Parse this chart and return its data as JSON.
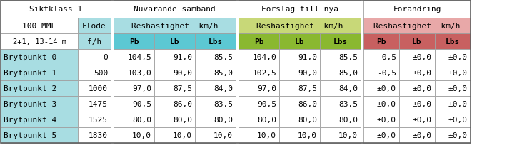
{
  "group_headers": [
    "Siktklass 1",
    "Nuvarande samband",
    "Förslag till nya",
    "Förändring"
  ],
  "sikt_row1": [
    "100 MML",
    "Flöde"
  ],
  "sikt_row2": [
    "2+1, 13-14 m",
    "f/h"
  ],
  "reshas_header": "Reshastighet  km/h",
  "sub_cols": [
    "Pb",
    "Lb",
    "Lbs"
  ],
  "row_labels": [
    "Brytpunkt 0",
    "Brytpunkt 1",
    "Brytpunkt 2",
    "Brytpunkt 3",
    "Brytpunkt 4",
    "Brytpunkt 5"
  ],
  "flode": [
    "0",
    "500",
    "1000",
    "1475",
    "1525",
    "1830"
  ],
  "nuv_data": [
    [
      "104,5",
      "91,0",
      "85,5"
    ],
    [
      "103,0",
      "90,0",
      "85,0"
    ],
    [
      "97,0",
      "87,5",
      "84,0"
    ],
    [
      "90,5",
      "86,0",
      "83,5"
    ],
    [
      "80,0",
      "80,0",
      "80,0"
    ],
    [
      "10,0",
      "10,0",
      "10,0"
    ]
  ],
  "forslag_data": [
    [
      "104,0",
      "91,0",
      "85,5"
    ],
    [
      "102,5",
      "90,0",
      "85,0"
    ],
    [
      "97,0",
      "87,5",
      "84,0"
    ],
    [
      "90,5",
      "86,0",
      "83,5"
    ],
    [
      "80,0",
      "80,0",
      "80,0"
    ],
    [
      "10,0",
      "10,0",
      "10,0"
    ]
  ],
  "forandring_data": [
    [
      "-0,5",
      "±0,0",
      "±0,0"
    ],
    [
      "-0,5",
      "±0,0",
      "±0,0"
    ],
    [
      "±0,0",
      "±0,0",
      "±0,0"
    ],
    [
      "±0,0",
      "±0,0",
      "±0,0"
    ],
    [
      "±0,0",
      "±0,0",
      "±0,0"
    ],
    [
      "±0,0",
      "±0,0",
      "±0,0"
    ]
  ],
  "c_white": "#ffffff",
  "c_cyan_light": "#a8dde2",
  "c_cyan_mid": "#5cc8d3",
  "c_green_light": "#c8d878",
  "c_green_dark": "#8ab830",
  "c_red_light": "#e8a8a8",
  "c_red_dark": "#c86060",
  "c_border": "#a0a0a0",
  "c_text": "#000000",
  "font_size": 8.0,
  "font_family": "monospace"
}
